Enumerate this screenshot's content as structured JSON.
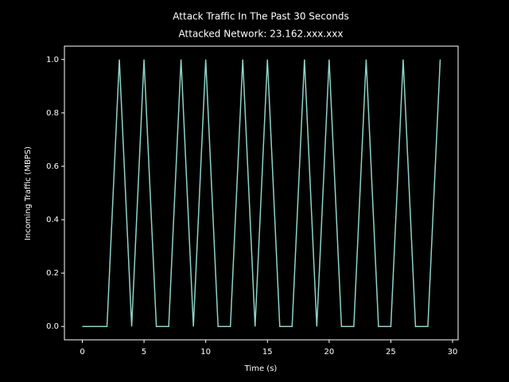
{
  "chart_data": {
    "type": "line",
    "title": "Attack Traffic In The Past 30 Seconds",
    "subtitle": "Attacked Network: 23.162.xxx.xxx",
    "x_label": "Time (s)",
    "y_label": "Incoming Traffic (MBPS)",
    "x": [
      0,
      1,
      2,
      3,
      4,
      5,
      6,
      7,
      8,
      9,
      10,
      11,
      12,
      13,
      14,
      15,
      16,
      17,
      18,
      19,
      20,
      21,
      22,
      23,
      24,
      25,
      26,
      27,
      28,
      29
    ],
    "series": [
      {
        "name": "traffic",
        "color": "#8dd3c7",
        "values": [
          0,
          0,
          0,
          1,
          0,
          1,
          0,
          0,
          1,
          0,
          1,
          0,
          0,
          1,
          0,
          1,
          0,
          0,
          1,
          0,
          1,
          0,
          0,
          1,
          0,
          0,
          1,
          0,
          0,
          1
        ]
      }
    ],
    "xlim": [
      -1.45,
      30.45
    ],
    "ylim": [
      -0.05,
      1.05
    ],
    "xticks": [
      0,
      5,
      10,
      15,
      20,
      25,
      30
    ],
    "yticks": [
      {
        "value": 0,
        "label": "0.0"
      },
      {
        "value": 0.2,
        "label": "0.2"
      },
      {
        "value": 0.4,
        "label": "0.4"
      },
      {
        "value": 0.6,
        "label": "0.6"
      },
      {
        "value": 0.8,
        "label": "0.8"
      },
      {
        "value": 1,
        "label": "1.0"
      }
    ]
  }
}
